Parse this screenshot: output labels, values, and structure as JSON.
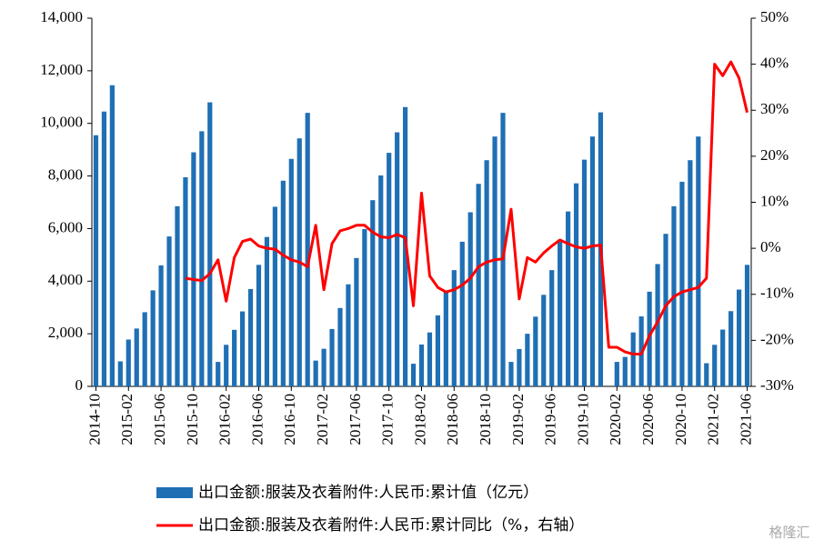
{
  "chart_data": {
    "type": "bar_line",
    "categories": [
      "2014-10",
      null,
      null,
      null,
      "2015-02",
      null,
      null,
      null,
      "2015-06",
      null,
      null,
      null,
      "2015-10",
      null,
      null,
      null,
      "2016-02",
      null,
      null,
      null,
      "2016-06",
      null,
      null,
      null,
      "2016-10",
      null,
      null,
      null,
      "2017-02",
      null,
      null,
      null,
      "2017-06",
      null,
      null,
      null,
      "2017-10",
      null,
      null,
      null,
      "2018-02",
      null,
      null,
      null,
      "2018-06",
      null,
      null,
      null,
      "2018-10",
      null,
      null,
      null,
      "2019-02",
      null,
      null,
      null,
      "2019-06",
      null,
      null,
      null,
      "2019-10",
      null,
      null,
      null,
      "2020-02",
      null,
      null,
      null,
      "2020-06",
      null,
      null,
      null,
      "2020-10",
      null,
      null,
      null,
      "2021-02",
      null,
      null,
      null,
      "2021-06"
    ],
    "series": [
      {
        "name": "出口金额:服装及衣着附件:人民币:累计值（亿元）",
        "color": "#1f6fb4",
        "type": "bar",
        "values": [
          9550,
          10450,
          11450,
          950,
          1780,
          2200,
          2820,
          3650,
          4600,
          5700,
          6850,
          7950,
          8900,
          9700,
          10800,
          930,
          1580,
          2150,
          2850,
          3700,
          4620,
          5680,
          6830,
          7820,
          8650,
          9430,
          10400,
          980,
          1430,
          2180,
          2980,
          3880,
          4880,
          5980,
          7080,
          8020,
          8880,
          9660,
          10620,
          860,
          1590,
          2050,
          2700,
          3650,
          4420,
          5500,
          6620,
          7700,
          8600,
          9500,
          10400,
          930,
          1420,
          2000,
          2650,
          3480,
          4420,
          5500,
          6650,
          7720,
          8620,
          9500,
          10420,
          null,
          930,
          1120,
          2050,
          2660,
          3600,
          4650,
          5800,
          6850,
          7780,
          8600,
          9500,
          880,
          1580,
          2160,
          2860,
          3680,
          4620
        ]
      },
      {
        "name": "出口金额:服装及衣着附件:人民币:累计同比（%，右轴）",
        "color": "#ff0000",
        "type": "line",
        "axis": "y2",
        "values": [
          null,
          null,
          null,
          null,
          null,
          null,
          null,
          null,
          null,
          null,
          null,
          -6.5,
          -6.8,
          -7,
          -5.5,
          -2.5,
          -11.5,
          -2,
          1.5,
          2,
          0.5,
          0,
          -0.2,
          -1.5,
          -2.5,
          -3,
          -4,
          5,
          -9,
          1,
          3.8,
          4.3,
          5,
          5,
          3.5,
          2.5,
          2.3,
          3,
          2.3,
          -12.5,
          12,
          -6,
          -8.5,
          -9.5,
          -9,
          -8,
          -6.5,
          -4,
          -3,
          -2.5,
          -2.3,
          8.5,
          -11,
          -2,
          -3,
          -1,
          0.5,
          1.8,
          1,
          0.3,
          0,
          0.5,
          0.7,
          -21.5,
          -21.5,
          -22.5,
          -23,
          -23,
          -19,
          -16,
          -12.5,
          -10.5,
          -9.5,
          -9,
          -8.5,
          -6.5,
          40,
          37.5,
          40.5,
          37,
          29.5
        ]
      }
    ],
    "ylim": [
      0,
      14000
    ],
    "yticks": [
      0,
      {
        "value": 2000,
        "label": "2,000"
      },
      {
        "value": 4000,
        "label": "4,000"
      },
      {
        "value": 6000,
        "label": "6,000"
      },
      {
        "value": 8000,
        "label": "8,000"
      },
      {
        "value": 10000,
        "label": "10,000"
      },
      {
        "value": 12000,
        "label": "12,000"
      },
      {
        "value": 14000,
        "label": "14,000"
      }
    ],
    "y2lim": [
      -30,
      50
    ],
    "y2ticks": [
      {
        "value": -30,
        "label": "-30%"
      },
      {
        "value": -20,
        "label": "-20%"
      },
      {
        "value": -10,
        "label": "-10%"
      },
      {
        "value": 0,
        "label": "0%"
      },
      {
        "value": 10,
        "label": "10%"
      },
      {
        "value": 20,
        "label": "20%"
      },
      {
        "value": 30,
        "label": "30%"
      },
      {
        "value": 40,
        "label": "40%"
      },
      {
        "value": 50,
        "label": "50%"
      }
    ],
    "watermark": "格隆汇"
  }
}
